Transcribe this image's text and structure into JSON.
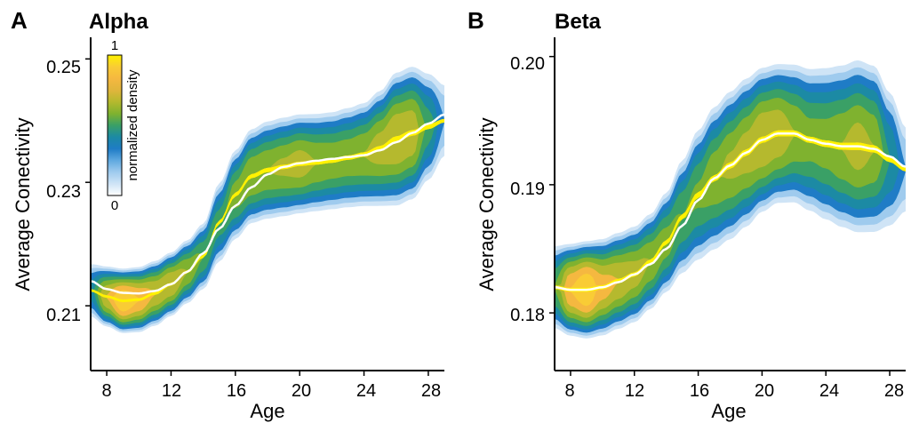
{
  "figure": {
    "background": "#ffffff"
  },
  "chart_data": [
    {
      "type": "heatmap",
      "panel_letter": "A",
      "title": "Alpha",
      "xlabel": "Age",
      "ylabel": "Average Conectivity",
      "xlim": [
        7,
        29
      ],
      "ylim": [
        0.1995,
        0.2535
      ],
      "xticks": [
        8,
        12,
        16,
        20,
        24,
        28
      ],
      "xtick_labels": [
        "8",
        "12",
        "16",
        "20",
        "24",
        "28"
      ],
      "yticks": [
        0.21,
        0.23,
        0.25
      ],
      "ytick_labels": [
        "0.21",
        "0.23",
        "0.25"
      ],
      "grid": false,
      "density": {
        "description_of_encoding": "per-age vertical density band",
        "age": [
          7,
          8,
          9,
          10,
          11,
          12,
          13,
          14,
          15,
          16,
          17,
          18,
          19,
          20,
          21,
          22,
          23,
          24,
          25,
          26,
          27,
          28,
          29
        ],
        "center": [
          0.2125,
          0.2115,
          0.2108,
          0.211,
          0.212,
          0.2135,
          0.2155,
          0.218,
          0.2235,
          0.228,
          0.231,
          0.232,
          0.2325,
          0.233,
          0.2332,
          0.2335,
          0.234,
          0.2345,
          0.2355,
          0.237,
          0.238,
          0.239,
          0.24
        ],
        "half_width": [
          0.0048,
          0.0052,
          0.0055,
          0.0056,
          0.0056,
          0.0055,
          0.0055,
          0.0058,
          0.007,
          0.0078,
          0.0082,
          0.0085,
          0.0086,
          0.0086,
          0.0085,
          0.0085,
          0.0087,
          0.009,
          0.01,
          0.0115,
          0.0115,
          0.0095,
          0.007
        ],
        "peak": [
          0.45,
          0.8,
          1.0,
          0.9,
          0.8,
          0.8,
          0.7,
          0.6,
          0.55,
          0.65,
          0.7,
          0.7,
          0.72,
          0.75,
          0.7,
          0.68,
          0.68,
          0.7,
          0.75,
          0.8,
          0.78,
          0.55,
          0.3
        ]
      },
      "fit_line": {
        "x": [
          7,
          8,
          9,
          10,
          11,
          12,
          13,
          14,
          15,
          16,
          17,
          18,
          19,
          20,
          21,
          22,
          23,
          24,
          25,
          26,
          27,
          28,
          29
        ],
        "y": [
          0.214,
          0.2127,
          0.2121,
          0.212,
          0.2124,
          0.2135,
          0.2155,
          0.2185,
          0.2225,
          0.2262,
          0.2292,
          0.2313,
          0.2325,
          0.2331,
          0.2335,
          0.2338,
          0.2341,
          0.2344,
          0.2352,
          0.2365,
          0.238,
          0.2395,
          0.241
        ],
        "color": "#ffffff"
      },
      "colorbar": {
        "label": "normalized density",
        "min_label": "0",
        "max_label": "1"
      }
    },
    {
      "type": "heatmap",
      "panel_letter": "B",
      "title": "Beta",
      "xlabel": "Age",
      "ylabel": "Average Conectivity",
      "xlim": [
        7,
        29
      ],
      "ylim": [
        0.1755,
        0.2015
      ],
      "xticks": [
        8,
        12,
        16,
        20,
        24,
        28
      ],
      "xtick_labels": [
        "8",
        "12",
        "16",
        "20",
        "24",
        "28"
      ],
      "yticks": [
        0.18,
        0.19,
        0.2
      ],
      "ytick_labels": [
        "0.18",
        "0.19",
        "0.20"
      ],
      "grid": false,
      "density": {
        "description_of_encoding": "per-age vertical density band",
        "age": [
          7,
          8,
          9,
          10,
          11,
          12,
          13,
          14,
          15,
          16,
          17,
          18,
          19,
          20,
          21,
          22,
          23,
          24,
          25,
          26,
          27,
          28,
          29
        ],
        "center": [
          0.182,
          0.1818,
          0.1818,
          0.182,
          0.1825,
          0.183,
          0.184,
          0.1855,
          0.1875,
          0.1892,
          0.1905,
          0.1915,
          0.1925,
          0.1935,
          0.194,
          0.194,
          0.1935,
          0.1932,
          0.193,
          0.193,
          0.1928,
          0.192,
          0.1912
        ],
        "half_width": [
          0.0035,
          0.0038,
          0.004,
          0.004,
          0.004,
          0.004,
          0.004,
          0.0042,
          0.0048,
          0.0055,
          0.006,
          0.0062,
          0.0062,
          0.006,
          0.0058,
          0.0058,
          0.006,
          0.0064,
          0.0068,
          0.0072,
          0.007,
          0.0058,
          0.004
        ],
        "peak": [
          0.6,
          0.9,
          1.0,
          0.85,
          0.8,
          0.75,
          0.7,
          0.65,
          0.6,
          0.62,
          0.68,
          0.72,
          0.75,
          0.8,
          0.78,
          0.7,
          0.65,
          0.66,
          0.7,
          0.75,
          0.7,
          0.5,
          0.3
        ]
      },
      "fit_line": {
        "x": [
          7,
          8,
          9,
          10,
          11,
          12,
          13,
          14,
          15,
          16,
          17,
          18,
          19,
          20,
          21,
          22,
          23,
          24,
          25,
          26,
          27,
          28,
          29
        ],
        "y": [
          0.182,
          0.1818,
          0.1818,
          0.182,
          0.1824,
          0.183,
          0.1838,
          0.185,
          0.1868,
          0.1888,
          0.1905,
          0.1915,
          0.1925,
          0.1935,
          0.194,
          0.194,
          0.1935,
          0.1932,
          0.193,
          0.193,
          0.1928,
          0.1922,
          0.1914
        ],
        "color": "#ffffff"
      }
    }
  ],
  "colormap": [
    "#ffffff",
    "#cfe4f6",
    "#9fcbee",
    "#5fa9e0",
    "#1f7cc6",
    "#1c8aa4",
    "#3aa066",
    "#7fb22f",
    "#b5b92e",
    "#e0b53c",
    "#f5b840",
    "#f9cc35",
    "#fff200"
  ]
}
